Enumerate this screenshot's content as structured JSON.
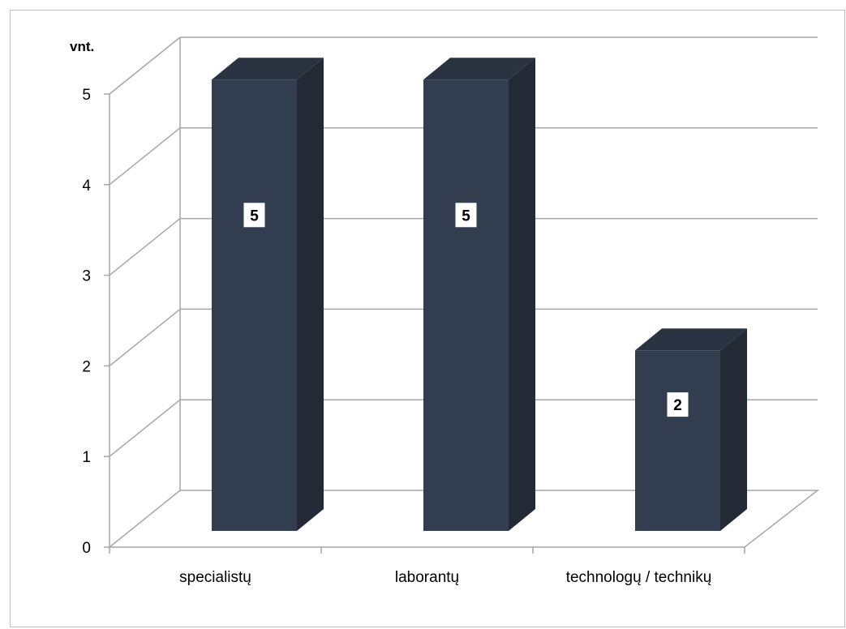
{
  "chart_data": {
    "type": "bar",
    "style": "3d-column",
    "unit_label": "vnt.",
    "categories": [
      "specialistų",
      "laborantų",
      "technologų / technikų"
    ],
    "values": [
      5,
      5,
      2
    ],
    "data_labels": [
      "5",
      "5",
      "2"
    ],
    "ylim": [
      0,
      5
    ],
    "yticks": [
      "0",
      "1",
      "2",
      "3",
      "4",
      "5"
    ],
    "grid": true,
    "legend": "none",
    "colors": {
      "bar_front": "#323d4f",
      "bar_side": "#232a35",
      "bar_top": "#2a3342",
      "gridline": "#a6a6a6",
      "axis": "#a6a6a6"
    }
  }
}
